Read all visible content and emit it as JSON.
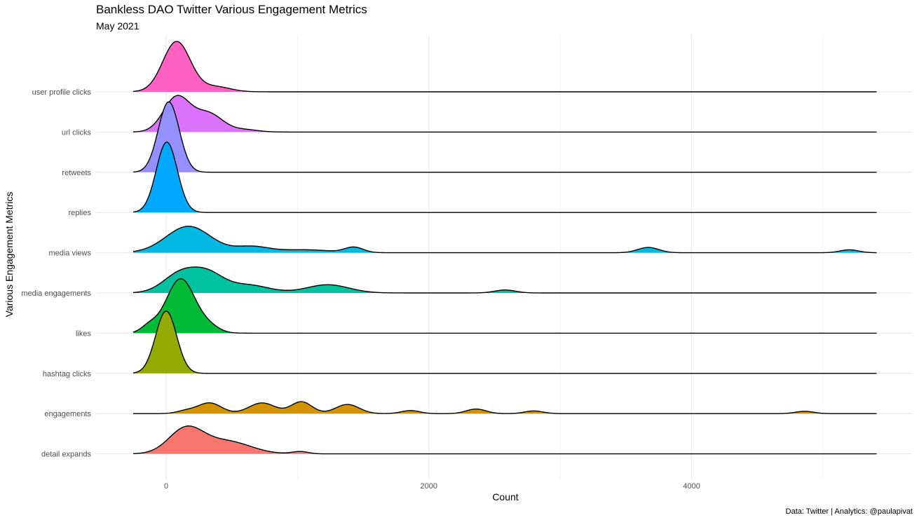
{
  "chart_data": {
    "type": "ridgeline",
    "title": "Bankless DAO Twitter Various Engagement Metrics",
    "subtitle": "May 2021",
    "caption": "Data: Twitter | Analytics: @paulapivat",
    "xlabel": "Count",
    "ylabel": "Various Engagement Metrics",
    "xlim": [
      -300,
      5400
    ],
    "x_ticks": [
      0,
      2000,
      4000
    ],
    "grid": true,
    "series": [
      {
        "name": "detail expands",
        "color": "#F8766D",
        "scale": 0.82,
        "peaks": [
          [
            150,
            130,
            0.75
          ],
          [
            460,
            180,
            0.38
          ],
          [
            1020,
            60,
            0.07
          ]
        ]
      },
      {
        "name": "engagements",
        "color": "#D39200",
        "scale": 0.95,
        "peaks": [
          [
            150,
            70,
            0.07
          ],
          [
            330,
            90,
            0.28
          ],
          [
            730,
            100,
            0.28
          ],
          [
            1030,
            80,
            0.31
          ],
          [
            1380,
            90,
            0.24
          ],
          [
            1860,
            70,
            0.08
          ],
          [
            2360,
            75,
            0.12
          ],
          [
            2800,
            70,
            0.07
          ],
          [
            4860,
            70,
            0.06
          ]
        ]
      },
      {
        "name": "hashtag clicks",
        "color": "#93AA00",
        "scale": 1.55,
        "peaks": [
          [
            0,
            80,
            1.0
          ]
        ]
      },
      {
        "name": "likes",
        "color": "#00BA38",
        "scale": 1.35,
        "peaks": [
          [
            -130,
            60,
            0.12
          ],
          [
            110,
            110,
            1.0
          ],
          [
            330,
            80,
            0.1
          ]
        ]
      },
      {
        "name": "media engagements",
        "color": "#00C19F",
        "scale": 0.73,
        "peaks": [
          [
            110,
            130,
            0.66
          ],
          [
            320,
            120,
            0.58
          ],
          [
            620,
            160,
            0.27
          ],
          [
            1230,
            160,
            0.28
          ],
          [
            2580,
            80,
            0.1
          ]
        ]
      },
      {
        "name": "media views",
        "color": "#00B9E3",
        "scale": 0.73,
        "peaks": [
          [
            170,
            170,
            0.9
          ],
          [
            650,
            130,
            0.2
          ],
          [
            1050,
            200,
            0.1
          ],
          [
            1430,
            70,
            0.18
          ],
          [
            3670,
            80,
            0.18
          ],
          [
            5200,
            70,
            0.1
          ]
        ]
      },
      {
        "name": "replies",
        "color": "#00A9FF",
        "scale": 1.75,
        "peaks": [
          [
            5,
            80,
            1.0
          ]
        ]
      },
      {
        "name": "retweets",
        "color": "#9590FF",
        "scale": 1.75,
        "peaks": [
          [
            20,
            80,
            1.0
          ]
        ]
      },
      {
        "name": "url clicks",
        "color": "#DB72FB",
        "scale": 1.15,
        "peaks": [
          [
            80,
            100,
            0.75
          ],
          [
            320,
            110,
            0.4
          ],
          [
            600,
            100,
            0.05
          ]
        ]
      },
      {
        "name": "user profile clicks",
        "color": "#FF61C3",
        "scale": 1.25,
        "peaks": [
          [
            80,
            105,
            1.0
          ],
          [
            380,
            110,
            0.1
          ]
        ]
      }
    ]
  }
}
